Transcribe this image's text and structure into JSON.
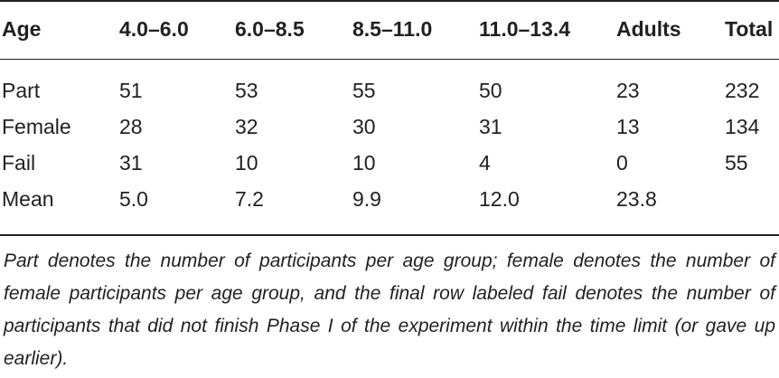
{
  "table": {
    "headers": [
      "Age",
      "4.0–6.0",
      "6.0–8.5",
      "8.5–11.0",
      "11.0–13.4",
      "Adults",
      "Total"
    ],
    "rows": [
      [
        "Part",
        "51",
        "53",
        "55",
        "50",
        "23",
        "232"
      ],
      [
        "Female",
        "28",
        "32",
        "30",
        "31",
        "13",
        "134"
      ],
      [
        "Fail",
        "31",
        "10",
        "10",
        "4",
        "0",
        "55"
      ],
      [
        "Mean",
        "5.0",
        "7.2",
        "9.9",
        "12.0",
        "23.8",
        ""
      ]
    ]
  },
  "footnote": "Part denotes the number of participants per age group; female denotes the number of female participants per age group, and the final row labeled fail denotes the number of participants that did not finish Phase I of the experiment within the time limit (or gave up earlier)."
}
